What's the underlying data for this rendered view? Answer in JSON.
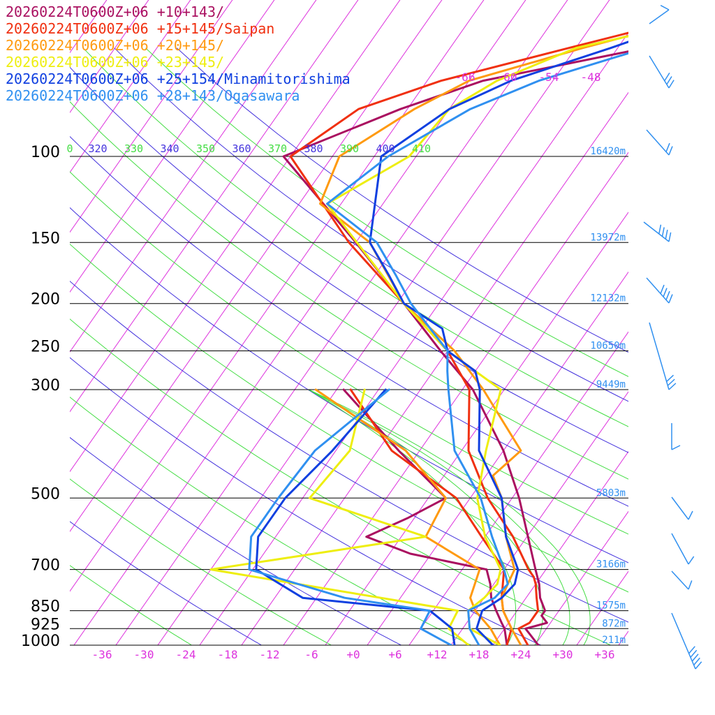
{
  "chart_data": {
    "type": "line",
    "legend": {
      "placement": "top-left",
      "entries": [
        {
          "label": "20260224T0600Z+06 +10+143/",
          "color": "#aa1060"
        },
        {
          "label": "20260224T0600Z+06 +15+145/Saipan",
          "color": "#f03010"
        },
        {
          "label": "20260224T0600Z+06 +20+145/",
          "color": "#ff9a10"
        },
        {
          "label": "20260224T0600Z+06 +23+145/",
          "color": "#eeee10"
        },
        {
          "label": "20260224T0600Z+06 +25+154/Minamitorishima",
          "color": "#1040e0"
        },
        {
          "label": "20260224T0600Z+06 +28+143/Ogasawara",
          "color": "#3090f0"
        }
      ]
    },
    "y_axis": {
      "unit": "hPa",
      "pressure_levels": [
        100,
        150,
        200,
        250,
        300,
        500,
        700,
        850,
        925,
        1000
      ],
      "tick_labels": [
        "100",
        "150",
        "200",
        "250",
        "300",
        "500",
        "700",
        "850",
        "925",
        "1000"
      ],
      "height_labels": [
        "16420m",
        "13972m",
        "12132m",
        "10650m",
        "9449m",
        "5803m",
        "3166m",
        "1575m",
        "872m",
        "211m"
      ]
    },
    "x_axis": {
      "unit": "degC",
      "tick_values": [
        -36,
        -30,
        -24,
        -18,
        -12,
        -6,
        0,
        6,
        12,
        18,
        24,
        30,
        36
      ],
      "tick_labels": [
        "-36",
        "-30",
        "-24",
        "-18",
        "-12",
        "-6",
        "+0",
        "+6",
        "+12",
        "+18",
        "+24",
        "+30",
        "+36"
      ]
    },
    "upper_temperature_labels": [
      "-66",
      "-60",
      "-54",
      "-48"
    ],
    "isentrope_labels": [
      {
        "text": "0",
        "color": "#44dd44"
      },
      {
        "text": "320",
        "color": "#4433dd"
      },
      {
        "text": "330",
        "color": "#44dd44"
      },
      {
        "text": "340",
        "color": "#4433dd"
      },
      {
        "text": "350",
        "color": "#44dd44"
      },
      {
        "text": "360",
        "color": "#4433dd"
      },
      {
        "text": "370",
        "color": "#44dd44"
      },
      {
        "text": "380",
        "color": "#4433dd"
      },
      {
        "text": "390",
        "color": "#44dd44"
      },
      {
        "text": "400",
        "color": "#4433dd"
      },
      {
        "text": "410",
        "color": "#44dd44"
      }
    ],
    "series": [
      {
        "name": "20260224T0600Z+06 +10+143/",
        "temperature": [
          [
            1000,
            26.5
          ],
          [
            925,
            23
          ],
          [
            900,
            25.5
          ],
          [
            870,
            24
          ],
          [
            850,
            24
          ],
          [
            800,
            22
          ],
          [
            750,
            20.5
          ],
          [
            700,
            18.5
          ],
          [
            500,
            9
          ],
          [
            400,
            2
          ],
          [
            300,
            -8.5
          ],
          [
            250,
            -17
          ],
          [
            200,
            -27
          ],
          [
            150,
            -40
          ],
          [
            100,
            -59
          ],
          [
            80,
            -47
          ],
          [
            70,
            -38
          ],
          [
            60,
            -18
          ],
          [
            50,
            -8
          ]
        ],
        "dewpoint": [
          [
            1000,
            22
          ],
          [
            925,
            20
          ],
          [
            900,
            19
          ],
          [
            850,
            17
          ],
          [
            800,
            15
          ],
          [
            750,
            13.5
          ],
          [
            700,
            11.5
          ],
          [
            650,
            -1
          ],
          [
            600,
            -9
          ],
          [
            550,
            -5
          ],
          [
            500,
            -1.5
          ],
          [
            400,
            -13
          ],
          [
            300,
            -27
          ]
        ]
      },
      {
        "name": "20260224T0600Z+06 +15+145/Saipan",
        "temperature": [
          [
            1000,
            25
          ],
          [
            925,
            22
          ],
          [
            900,
            23
          ],
          [
            850,
            23
          ],
          [
            800,
            21.5
          ],
          [
            750,
            20
          ],
          [
            725,
            19
          ],
          [
            700,
            17.5
          ],
          [
            600,
            12
          ],
          [
            500,
            4.5
          ],
          [
            400,
            -3
          ],
          [
            300,
            -9
          ],
          [
            250,
            -16
          ],
          [
            200,
            -27
          ],
          [
            150,
            -41
          ],
          [
            100,
            -58
          ],
          [
            80,
            -53
          ],
          [
            70,
            -44
          ],
          [
            60,
            -29
          ],
          [
            50,
            -11
          ]
        ],
        "dewpoint": [
          [
            1000,
            22
          ],
          [
            925,
            21
          ],
          [
            850,
            18
          ],
          [
            800,
            16.5
          ],
          [
            700,
            14
          ],
          [
            600,
            7.5
          ],
          [
            500,
            0
          ],
          [
            400,
            -14
          ],
          [
            300,
            -26
          ]
        ]
      },
      {
        "name": "20260224T0600Z+06 +20+145/",
        "temperature": [
          [
            1000,
            24
          ],
          [
            925,
            21
          ],
          [
            850,
            18
          ],
          [
            800,
            16.5
          ],
          [
            750,
            16
          ],
          [
            700,
            15.5
          ],
          [
            600,
            11
          ],
          [
            500,
            6.5
          ],
          [
            450,
            3
          ],
          [
            400,
            4.5
          ],
          [
            300,
            -7
          ],
          [
            250,
            -15
          ],
          [
            200,
            -27
          ],
          [
            150,
            -38
          ],
          [
            125,
            -49
          ],
          [
            100,
            -51
          ],
          [
            80,
            -45
          ],
          [
            70,
            -40
          ],
          [
            60,
            -27
          ],
          [
            50,
            -10
          ]
        ],
        "dewpoint": [
          [
            1000,
            21
          ],
          [
            925,
            18
          ],
          [
            850,
            14
          ],
          [
            800,
            12
          ],
          [
            700,
            10.5
          ],
          [
            600,
            -0.5
          ],
          [
            500,
            -1.5
          ],
          [
            400,
            -12
          ],
          [
            300,
            -31
          ]
        ]
      },
      {
        "name": "20260224T0600Z+06 +23+145/",
        "temperature": [
          [
            1000,
            21
          ],
          [
            925,
            15
          ],
          [
            850,
            13
          ],
          [
            800,
            14
          ],
          [
            750,
            14.5
          ],
          [
            700,
            13.5
          ],
          [
            600,
            8
          ],
          [
            500,
            3
          ],
          [
            400,
            -0.5
          ],
          [
            300,
            -4.5
          ],
          [
            250,
            -16
          ],
          [
            200,
            -27
          ],
          [
            125,
            -48
          ],
          [
            100,
            -41
          ],
          [
            80,
            -40
          ],
          [
            70,
            -36
          ],
          [
            60,
            -28
          ],
          [
            50,
            -7
          ]
        ],
        "dewpoint": [
          [
            1000,
            16.5
          ],
          [
            925,
            12
          ],
          [
            850,
            11.5
          ],
          [
            700,
            -28
          ],
          [
            600,
            -0.5
          ],
          [
            500,
            -21
          ],
          [
            400,
            -20
          ],
          [
            300,
            -24
          ]
        ]
      },
      {
        "name": "20260224T0600Z+06 +25+154/Minamitorishima",
        "temperature": [
          [
            1000,
            20
          ],
          [
            925,
            16
          ],
          [
            850,
            15
          ],
          [
            800,
            16.5
          ],
          [
            750,
            17
          ],
          [
            700,
            16
          ],
          [
            600,
            11
          ],
          [
            500,
            6.5
          ],
          [
            400,
            -1.5
          ],
          [
            300,
            -7.5
          ],
          [
            275,
            -10
          ],
          [
            250,
            -16
          ],
          [
            225,
            -19
          ],
          [
            200,
            -27
          ],
          [
            175,
            -32
          ],
          [
            150,
            -38
          ],
          [
            100,
            -45
          ],
          [
            80,
            -40
          ],
          [
            70,
            -34
          ],
          [
            60,
            -23
          ],
          [
            50,
            -11
          ]
        ],
        "dewpoint": [
          [
            1000,
            14.5
          ],
          [
            925,
            12.5
          ],
          [
            850,
            7.5
          ],
          [
            800,
            -12
          ],
          [
            700,
            -21.5
          ],
          [
            600,
            -24.5
          ],
          [
            500,
            -24.5
          ],
          [
            400,
            -22.5
          ],
          [
            300,
            -21
          ]
        ]
      },
      {
        "name": "20260224T0600Z+06 +28+143/Ogasawara",
        "temperature": [
          [
            1000,
            18
          ],
          [
            925,
            15
          ],
          [
            850,
            13
          ],
          [
            800,
            15.5
          ],
          [
            750,
            16
          ],
          [
            700,
            14
          ],
          [
            600,
            9
          ],
          [
            500,
            3.5
          ],
          [
            400,
            -5
          ],
          [
            300,
            -12
          ],
          [
            275,
            -14
          ],
          [
            250,
            -16
          ],
          [
            200,
            -26
          ],
          [
            175,
            -31
          ],
          [
            150,
            -37
          ],
          [
            125,
            -48
          ],
          [
            100,
            -44
          ],
          [
            80,
            -37
          ],
          [
            70,
            -30
          ],
          [
            60,
            -18
          ],
          [
            50,
            -10
          ]
        ],
        "dewpoint": [
          [
            1000,
            14
          ],
          [
            925,
            8
          ],
          [
            850,
            7.5
          ],
          [
            800,
            -6
          ],
          [
            700,
            -22.5
          ],
          [
            600,
            -25.5
          ],
          [
            500,
            -25.5
          ],
          [
            400,
            -25
          ],
          [
            300,
            -20.5
          ]
        ]
      }
    ],
    "wind_barbs": {
      "color": "#3090f0",
      "side": "right"
    }
  }
}
